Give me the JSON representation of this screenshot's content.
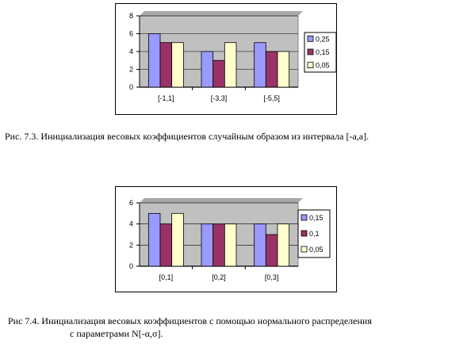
{
  "chart_data": [
    {
      "type": "bar",
      "categories": [
        "[-1,1]",
        "[-3,3]",
        "[-5,5]"
      ],
      "series": [
        {
          "name": "0,25",
          "values": [
            6,
            4,
            5
          ],
          "color": "#9999ff"
        },
        {
          "name": "0,15",
          "values": [
            5,
            3,
            4
          ],
          "color": "#993366"
        },
        {
          "name": "0,05",
          "values": [
            5,
            5,
            4
          ],
          "color": "#ffffcc"
        }
      ],
      "ylim": [
        0,
        8
      ],
      "yticks": [
        "0",
        "2",
        "4",
        "6",
        "8"
      ],
      "plot_background": "#c0c0c0",
      "grid": true,
      "legend": "right"
    },
    {
      "type": "bar",
      "categories": [
        "[0,1]",
        "[0,2]",
        "[0,3]"
      ],
      "series": [
        {
          "name": "0,15",
          "values": [
            5,
            4,
            4
          ],
          "color": "#9999ff"
        },
        {
          "name": "0,1",
          "values": [
            4,
            4,
            3
          ],
          "color": "#993366"
        },
        {
          "name": "0,05",
          "values": [
            5,
            4,
            4
          ],
          "color": "#ffffcc"
        }
      ],
      "ylim": [
        0,
        6
      ],
      "yticks": [
        "0",
        "2",
        "4",
        "6"
      ],
      "plot_background": "#c0c0c0",
      "grid": true,
      "legend": "right"
    }
  ],
  "captions": {
    "fig1": "Рис. 7.3. Инициализация весовых коэффициентов случайным образом из интервала [-a,a].",
    "fig2_line1": "Рис 7.4. Инициализация весовых коэффициентов с помощью нормального распределения",
    "fig2_line2": "с параметрами N[-α,σ]."
  }
}
